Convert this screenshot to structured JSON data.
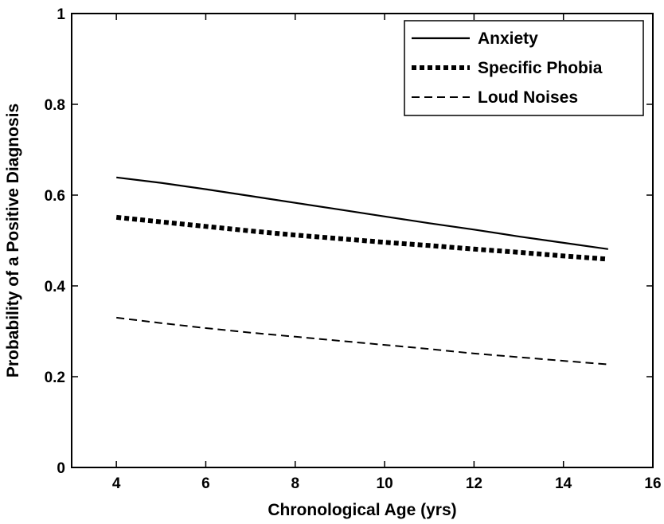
{
  "chart_data": {
    "type": "line",
    "title": "",
    "xlabel": "Chronological Age (yrs)",
    "ylabel": "Probability of a Positive Diagnosis",
    "xlim": [
      3,
      16
    ],
    "ylim": [
      0,
      1
    ],
    "xticks": [
      4,
      6,
      8,
      10,
      12,
      14,
      16
    ],
    "yticks": [
      0,
      0.2,
      0.4,
      0.6,
      0.8,
      1
    ],
    "xtick_labels": [
      "4",
      "6",
      "8",
      "10",
      "12",
      "14",
      "16"
    ],
    "ytick_labels": [
      "0",
      "0.2",
      "0.4",
      "0.6",
      "0.8",
      "1"
    ],
    "grid": false,
    "legend_position": "top-right",
    "series": [
      {
        "name": "Anxiety",
        "style": "solid",
        "color": "#000000",
        "x": [
          4,
          5,
          6,
          7,
          8,
          9,
          10,
          11,
          12,
          13,
          14,
          15
        ],
        "y": [
          0.639,
          0.627,
          0.613,
          0.598,
          0.583,
          0.568,
          0.553,
          0.538,
          0.524,
          0.509,
          0.495,
          0.481
        ]
      },
      {
        "name": "Specific Phobia",
        "style": "dotted-thick",
        "color": "#000000",
        "x": [
          4,
          5,
          6,
          7,
          8,
          9,
          10,
          11,
          12,
          13,
          14,
          15
        ],
        "y": [
          0.551,
          0.541,
          0.531,
          0.521,
          0.512,
          0.504,
          0.496,
          0.489,
          0.481,
          0.474,
          0.466,
          0.459
        ]
      },
      {
        "name": "Loud Noises",
        "style": "dashed",
        "color": "#000000",
        "x": [
          4,
          5,
          6,
          7,
          8,
          9,
          10,
          11,
          12,
          13,
          14,
          15
        ],
        "y": [
          0.33,
          0.318,
          0.307,
          0.297,
          0.288,
          0.279,
          0.27,
          0.261,
          0.251,
          0.243,
          0.235,
          0.227
        ]
      }
    ]
  }
}
